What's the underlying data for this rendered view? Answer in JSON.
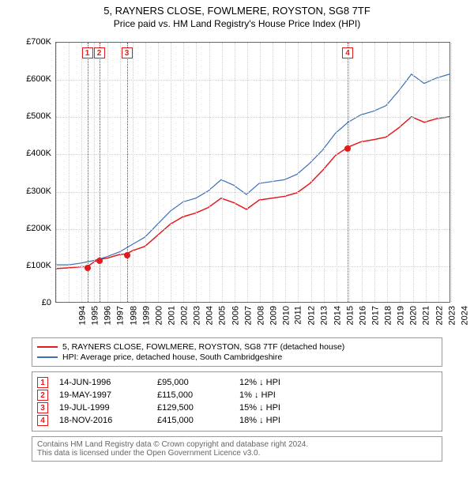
{
  "title": "5, RAYNERS CLOSE, FOWLMERE, ROYSTON, SG8 7TF",
  "subtitle": "Price paid vs. HM Land Registry's House Price Index (HPI)",
  "chart": {
    "type": "line",
    "background_color": "#ffffff",
    "axis_color": "#666666",
    "text_color": "#000000",
    "grid_color": "#d0d0d0",
    "label_fontsize": 11,
    "x": {
      "min": 1994,
      "max": 2025,
      "tick_step": 1,
      "rotate": -90
    },
    "y": {
      "min": 0,
      "max": 700000,
      "tick_step": 100000,
      "tick_labels": [
        "£0",
        "£100K",
        "£200K",
        "£300K",
        "£400K",
        "£500K",
        "£600K",
        "£700K"
      ]
    },
    "series": [
      {
        "name": "price_paid",
        "label": "5, RAYNERS CLOSE, FOWLMERE, ROYSTON, SG8 7TF (detached house)",
        "color": "#e31a1c",
        "line_width": 1.5,
        "points": [
          [
            1994.0,
            90000
          ],
          [
            1995.0,
            92000
          ],
          [
            1996.0,
            95000
          ],
          [
            1996.45,
            95000
          ],
          [
            1997.0,
            108000
          ],
          [
            1997.38,
            115000
          ],
          [
            1998.0,
            118000
          ],
          [
            1999.0,
            128000
          ],
          [
            1999.55,
            129500
          ],
          [
            2000.0,
            138000
          ],
          [
            2001.0,
            150000
          ],
          [
            2002.0,
            180000
          ],
          [
            2003.0,
            210000
          ],
          [
            2004.0,
            230000
          ],
          [
            2005.0,
            240000
          ],
          [
            2006.0,
            255000
          ],
          [
            2007.0,
            280000
          ],
          [
            2008.0,
            268000
          ],
          [
            2009.0,
            250000
          ],
          [
            2010.0,
            275000
          ],
          [
            2011.0,
            280000
          ],
          [
            2012.0,
            285000
          ],
          [
            2013.0,
            295000
          ],
          [
            2014.0,
            320000
          ],
          [
            2015.0,
            355000
          ],
          [
            2016.0,
            395000
          ],
          [
            2016.88,
            415000
          ],
          [
            2017.0,
            418000
          ],
          [
            2018.0,
            432000
          ],
          [
            2019.0,
            438000
          ],
          [
            2020.0,
            445000
          ],
          [
            2021.0,
            470000
          ],
          [
            2022.0,
            500000
          ],
          [
            2023.0,
            485000
          ],
          [
            2024.0,
            495000
          ],
          [
            2025.0,
            500000
          ]
        ]
      },
      {
        "name": "hpi",
        "label": "HPI: Average price, detached house, South Cambridgeshire",
        "color": "#3b6fb6",
        "line_width": 1.2,
        "points": [
          [
            1994.0,
            100000
          ],
          [
            1995.0,
            100000
          ],
          [
            1996.0,
            105000
          ],
          [
            1997.0,
            112000
          ],
          [
            1998.0,
            122000
          ],
          [
            1999.0,
            135000
          ],
          [
            2000.0,
            155000
          ],
          [
            2001.0,
            175000
          ],
          [
            2002.0,
            210000
          ],
          [
            2003.0,
            245000
          ],
          [
            2004.0,
            270000
          ],
          [
            2005.0,
            280000
          ],
          [
            2006.0,
            300000
          ],
          [
            2007.0,
            330000
          ],
          [
            2008.0,
            315000
          ],
          [
            2009.0,
            290000
          ],
          [
            2010.0,
            320000
          ],
          [
            2011.0,
            325000
          ],
          [
            2012.0,
            330000
          ],
          [
            2013.0,
            345000
          ],
          [
            2014.0,
            375000
          ],
          [
            2015.0,
            410000
          ],
          [
            2016.0,
            455000
          ],
          [
            2017.0,
            485000
          ],
          [
            2018.0,
            505000
          ],
          [
            2019.0,
            515000
          ],
          [
            2020.0,
            530000
          ],
          [
            2021.0,
            570000
          ],
          [
            2022.0,
            615000
          ],
          [
            2023.0,
            590000
          ],
          [
            2024.0,
            605000
          ],
          [
            2025.0,
            615000
          ]
        ]
      }
    ],
    "markers": [
      {
        "x": 1996.45,
        "y": 95000,
        "color": "#e31a1c"
      },
      {
        "x": 1997.38,
        "y": 115000,
        "color": "#e31a1c"
      },
      {
        "x": 1999.55,
        "y": 129500,
        "color": "#e31a1c"
      },
      {
        "x": 2016.88,
        "y": 415000,
        "color": "#e31a1c"
      }
    ],
    "event_lines": [
      {
        "n": "1",
        "x": 1996.45,
        "color": "#e31a1c"
      },
      {
        "n": "2",
        "x": 1997.38,
        "color": "#e31a1c"
      },
      {
        "n": "3",
        "x": 1999.55,
        "color": "#e31a1c"
      },
      {
        "n": "4",
        "x": 2016.88,
        "color": "#e31a1c"
      }
    ]
  },
  "legend": {
    "items": [
      {
        "color": "#e31a1c",
        "label": "5, RAYNERS CLOSE, FOWLMERE, ROYSTON, SG8 7TF (detached house)"
      },
      {
        "color": "#3b6fb6",
        "label": "HPI: Average price, detached house, South Cambridgeshire"
      }
    ]
  },
  "transactions": [
    {
      "n": "1",
      "date": "14-JUN-1996",
      "price": "£95,000",
      "diff": "12% ↓ HPI",
      "color": "#e31a1c"
    },
    {
      "n": "2",
      "date": "19-MAY-1997",
      "price": "£115,000",
      "diff": "1% ↓ HPI",
      "color": "#e31a1c"
    },
    {
      "n": "3",
      "date": "19-JUL-1999",
      "price": "£129,500",
      "diff": "15% ↓ HPI",
      "color": "#e31a1c"
    },
    {
      "n": "4",
      "date": "18-NOV-2016",
      "price": "£415,000",
      "diff": "18% ↓ HPI",
      "color": "#e31a1c"
    }
  ],
  "footer": {
    "line1": "Contains HM Land Registry data © Crown copyright and database right 2024.",
    "line2": "This data is licensed under the Open Government Licence v3.0."
  }
}
